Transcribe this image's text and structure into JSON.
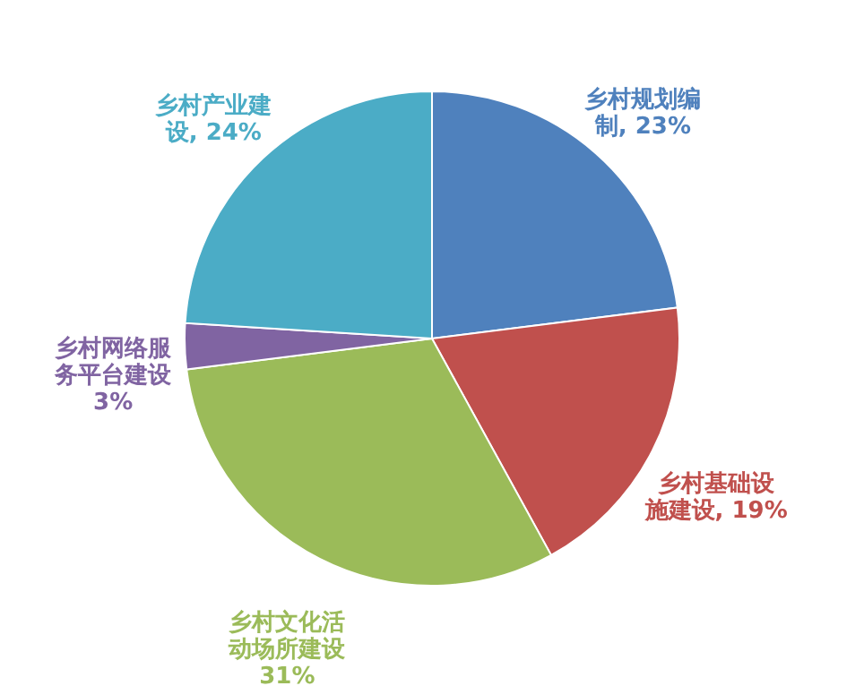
{
  "chart_data": {
    "type": "pie",
    "categories": [
      "乡村规划编制",
      "乡村基础设施建设",
      "乡村文化活动场所建设",
      "乡村网络服务平台建设",
      "乡村产业建设"
    ],
    "values": [
      23,
      19,
      31,
      3,
      24
    ],
    "value_labels": [
      "23%",
      "19%",
      "31%",
      "3%",
      "24%"
    ],
    "colors": [
      "#4f81bd",
      "#c0504d",
      "#9bbb59",
      "#8064a2",
      "#4bacc6"
    ],
    "legend": false
  }
}
